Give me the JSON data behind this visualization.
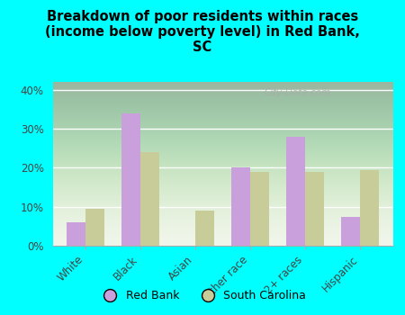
{
  "title": "Breakdown of poor residents within races\n(income below poverty level) in Red Bank,\nSC",
  "categories": [
    "White",
    "Black",
    "Asian",
    "Other race",
    "2+ races",
    "Hispanic"
  ],
  "red_bank": [
    6,
    34,
    0,
    20,
    28,
    7.5
  ],
  "south_carolina": [
    9.5,
    24,
    9,
    19,
    19,
    19.5
  ],
  "red_bank_color": "#c9a0dc",
  "sc_color": "#c8cc99",
  "background_outer": "#00ffff",
  "background_inner_top": "#f5f8f0",
  "background_inner_bottom": "#d8e8c8",
  "yticks": [
    0,
    10,
    20,
    30,
    40
  ],
  "ylim": [
    0,
    42
  ],
  "bar_width": 0.35,
  "watermark": "City-Data.com",
  "grid_color": "#e8ede0"
}
